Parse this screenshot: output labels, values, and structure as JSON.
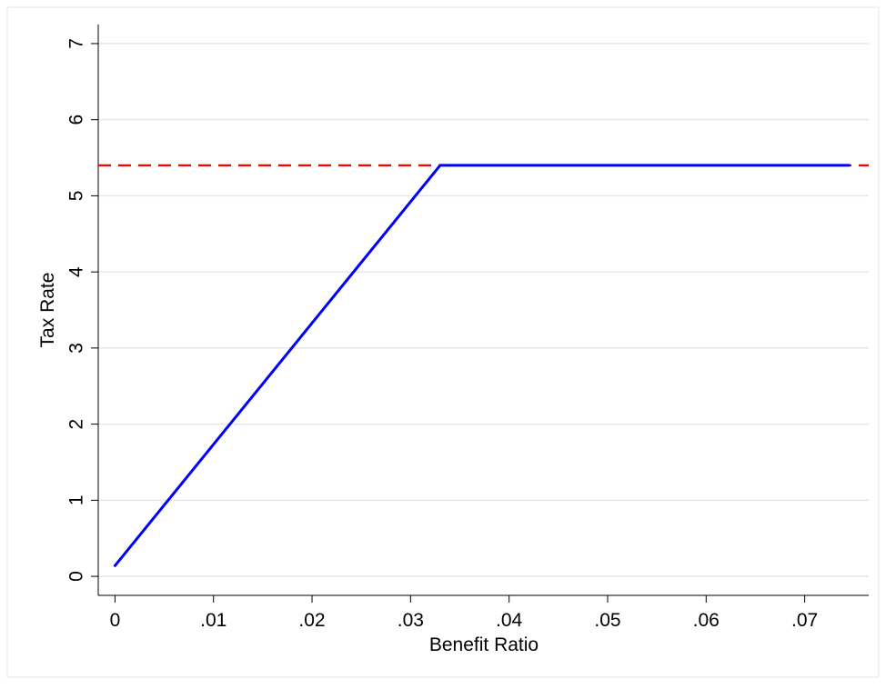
{
  "chart_data": {
    "type": "line",
    "xlabel": "Benefit Ratio",
    "ylabel": "Tax Rate",
    "xlim": [
      -0.0017,
      0.0765
    ],
    "ylim": [
      -0.25,
      7.25
    ],
    "x_ticks": [
      0,
      0.01,
      0.02,
      0.03,
      0.04,
      0.05,
      0.06,
      0.07
    ],
    "x_tick_labels": [
      "0",
      ".01",
      ".02",
      ".03",
      ".04",
      ".05",
      ".06",
      ".07"
    ],
    "y_ticks": [
      0,
      1,
      2,
      3,
      4,
      5,
      6,
      7
    ],
    "y_tick_labels": [
      "0",
      "1",
      "2",
      "3",
      "4",
      "5",
      "6",
      "7"
    ],
    "grid": true,
    "series": [
      {
        "color": "#0000ff",
        "style": "solid",
        "x": [
          0,
          0.033,
          0.0745
        ],
        "y": [
          0.14,
          5.4,
          5.4
        ]
      }
    ],
    "reference_lines": [
      {
        "orientation": "horizontal",
        "y": 5.4,
        "color": "#ff0000",
        "style": "dashed"
      }
    ]
  }
}
